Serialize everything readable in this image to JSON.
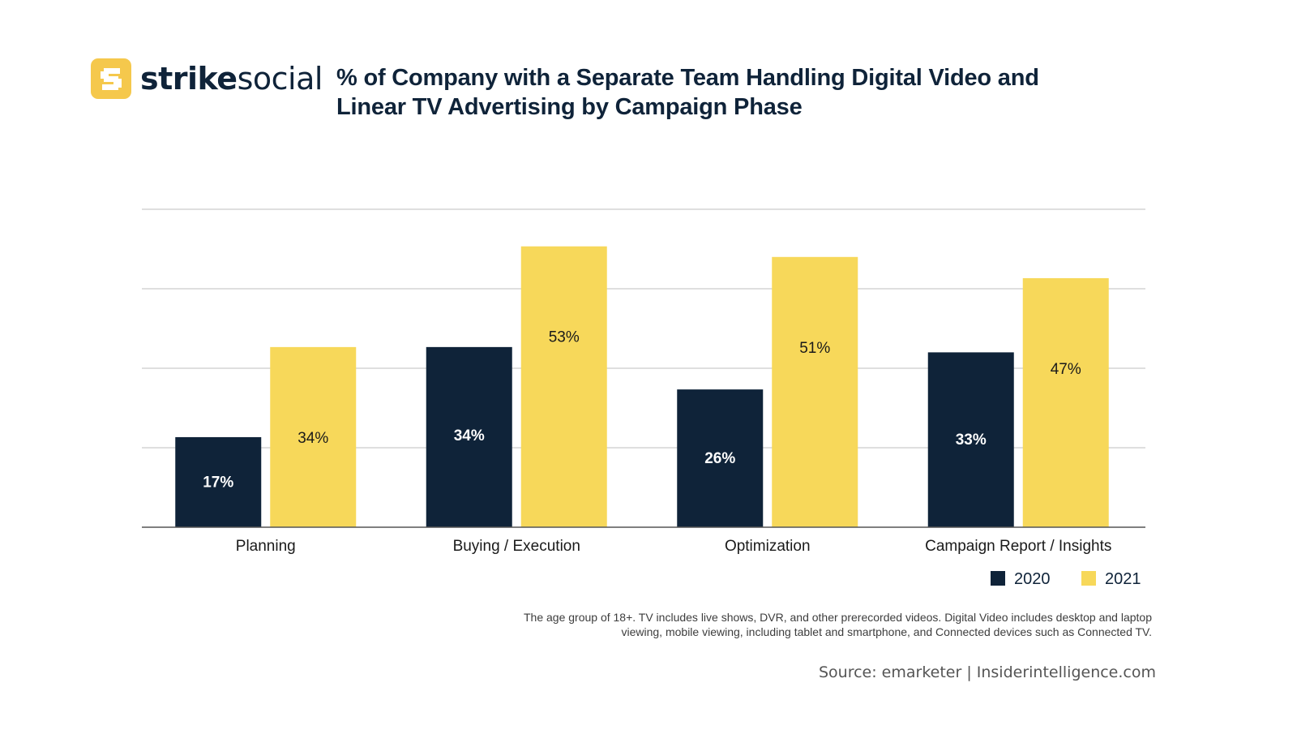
{
  "brand": {
    "name_bold": "strike",
    "name_light": "social",
    "logo_icon": "strike-social-s-icon",
    "colors": {
      "logo_bg": "#f5c84c",
      "text": "#0f2339"
    }
  },
  "colors": {
    "series_2020": "#0f2339",
    "series_2021": "#f7d85a",
    "grid": "#cccccc",
    "axis": "#555555"
  },
  "footnote": "The age group of 18+. TV includes live shows, DVR, and other prerecorded videos. Digital Video includes desktop and laptop viewing, mobile viewing, including tablet and smartphone, and Connected devices such as Connected TV.",
  "source": "Source: emarketer | Insiderintelligence.com",
  "chart_data": {
    "type": "bar",
    "title": "% of Company with a Separate Team Handling Digital Video and Linear TV Advertising by Campaign Phase",
    "xlabel": "",
    "ylabel": "",
    "categories": [
      "Planning",
      "Buying / Execution",
      "Optimization",
      "Campaign Report / Insights"
    ],
    "series": [
      {
        "name": "2020",
        "values": [
          17,
          34,
          26,
          33
        ],
        "labels": [
          "17%",
          "34%",
          "26%",
          "33%"
        ],
        "color": "#0f2339",
        "label_color": "#ffffff"
      },
      {
        "name": "2021",
        "values": [
          34,
          53,
          51,
          47
        ],
        "labels": [
          "34%",
          "53%",
          "51%",
          "47%"
        ],
        "color": "#f7d85a",
        "label_color": "#1a1a1a"
      }
    ],
    "ylim": [
      0,
      60
    ],
    "gridlines": [
      15,
      30,
      45,
      60
    ],
    "y_tick_labels_shown": false,
    "grid": true,
    "legend": "bottom-right"
  }
}
